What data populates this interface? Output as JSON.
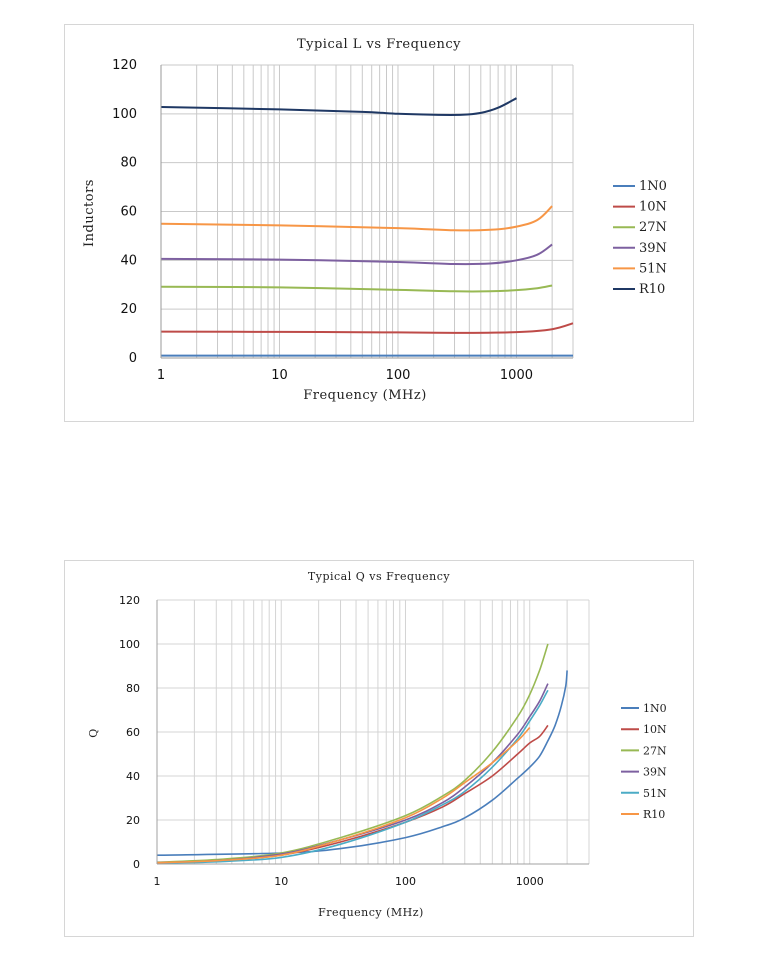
{
  "chart_data": [
    {
      "type": "line",
      "title": "Typical L vs Frequency",
      "xlabel": "Frequency (MHz)",
      "ylabel": "Inductors",
      "xscale": "log",
      "xlim": [
        1,
        3000
      ],
      "ylim": [
        0,
        120
      ],
      "xticks": [
        1,
        10,
        100,
        1000
      ],
      "xtick_labels": [
        "1",
        "10",
        "100",
        "1000"
      ],
      "yticks": [
        0,
        20,
        40,
        60,
        80,
        100,
        120
      ],
      "ytick_labels": [
        "0",
        "20",
        "40",
        "60",
        "80",
        "100",
        "120"
      ],
      "grid": true,
      "legend_position": "right",
      "series": [
        {
          "name": "1N0",
          "color": "#4a7ebb",
          "x": [
            1,
            10,
            100,
            1000,
            3000
          ],
          "y": [
            1.0,
            1.0,
            1.0,
            1.0,
            1.0
          ]
        },
        {
          "name": "10N",
          "color": "#be4b48",
          "x": [
            1,
            10,
            100,
            300,
            1000,
            2000,
            3000
          ],
          "y": [
            10.8,
            10.7,
            10.5,
            10.3,
            10.6,
            11.8,
            14.2
          ]
        },
        {
          "name": "27N",
          "color": "#98b954",
          "x": [
            1,
            10,
            100,
            300,
            600,
            1000,
            1500,
            2000
          ],
          "y": [
            29.2,
            28.9,
            27.9,
            27.3,
            27.3,
            27.8,
            28.6,
            29.7
          ]
        },
        {
          "name": "39N",
          "color": "#7d60a0",
          "x": [
            1,
            10,
            100,
            300,
            600,
            1000,
            1500,
            2000
          ],
          "y": [
            40.6,
            40.3,
            39.3,
            38.5,
            38.7,
            40.0,
            42.3,
            46.5
          ]
        },
        {
          "name": "51N",
          "color": "#f79646",
          "x": [
            1,
            10,
            100,
            300,
            600,
            1000,
            1500,
            2000
          ],
          "y": [
            55.0,
            54.3,
            53.2,
            52.3,
            52.5,
            53.8,
            56.5,
            62.2
          ]
        },
        {
          "name": "R10",
          "color": "#1f3864",
          "x": [
            1,
            10,
            50,
            100,
            200,
            350,
            500,
            700,
            1000
          ],
          "y": [
            102.8,
            101.8,
            100.8,
            100.0,
            99.6,
            99.6,
            100.4,
            102.5,
            106.4
          ]
        }
      ]
    },
    {
      "type": "line",
      "title": "Typical Q vs Frequency",
      "xlabel": "Frequency (MHz)",
      "ylabel": "Q",
      "xscale": "log",
      "xlim": [
        1,
        3000
      ],
      "ylim": [
        0,
        120
      ],
      "xticks": [
        1,
        10,
        100,
        1000
      ],
      "xtick_labels": [
        "1",
        "10",
        "100",
        "1000"
      ],
      "yticks": [
        0,
        20,
        40,
        60,
        80,
        100,
        120
      ],
      "ytick_labels": [
        "0",
        "20",
        "40",
        "60",
        "80",
        "100",
        "120"
      ],
      "grid": true,
      "legend_position": "right",
      "series": [
        {
          "name": "1N0",
          "color": "#4a7ebb",
          "x": [
            1,
            10,
            30,
            100,
            200,
            300,
            500,
            800,
            1000,
            1200,
            1400,
            1600,
            1800,
            1950,
            2000
          ],
          "y": [
            4,
            5,
            7,
            12,
            17,
            21,
            29,
            39,
            44,
            49,
            56,
            63,
            72,
            81,
            88
          ]
        },
        {
          "name": "10N",
          "color": "#be4b48",
          "x": [
            1,
            3,
            10,
            30,
            100,
            200,
            300,
            500,
            800,
            1000,
            1200,
            1400
          ],
          "y": [
            0.7,
            1.5,
            4,
            10,
            19,
            26,
            32,
            40,
            50,
            55,
            58,
            63
          ]
        },
        {
          "name": "27N",
          "color": "#98b954",
          "x": [
            1,
            3,
            10,
            30,
            100,
            200,
            300,
            500,
            800,
            1000,
            1200,
            1400
          ],
          "y": [
            0.8,
            2,
            5,
            12,
            22,
            31,
            38,
            51,
            67,
            77,
            88,
            100
          ]
        },
        {
          "name": "39N",
          "color": "#7d60a0",
          "x": [
            1,
            3,
            10,
            30,
            100,
            200,
            300,
            500,
            800,
            1000,
            1200,
            1400
          ],
          "y": [
            0.6,
            1.5,
            4.5,
            11,
            20,
            28,
            35,
            46,
            59,
            67,
            74,
            82
          ]
        },
        {
          "name": "51N",
          "color": "#4bacc6",
          "x": [
            1,
            3,
            10,
            30,
            100,
            200,
            300,
            500,
            800,
            1000,
            1200,
            1400
          ],
          "y": [
            0.5,
            1,
            3,
            9,
            19,
            27,
            33,
            44,
            57,
            65,
            72,
            79
          ]
        },
        {
          "name": "R10",
          "color": "#f79646",
          "x": [
            1,
            3,
            10,
            30,
            100,
            200,
            300,
            500,
            800,
            1000
          ],
          "y": [
            0.6,
            1.5,
            4,
            11,
            21,
            30,
            37,
            46,
            56,
            62
          ]
        }
      ]
    }
  ]
}
